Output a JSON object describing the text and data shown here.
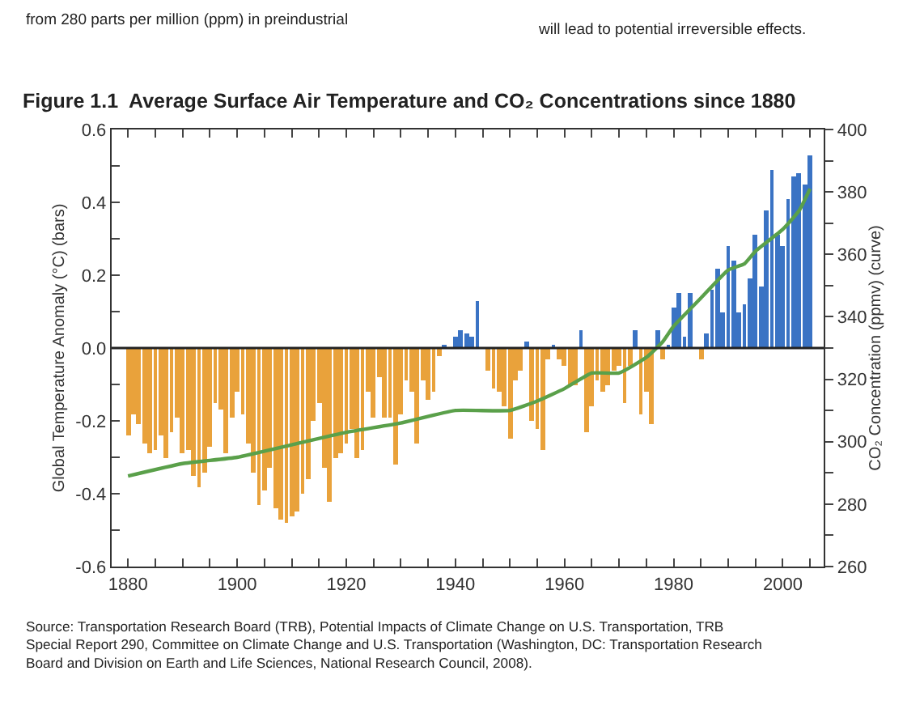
{
  "chart_data": {
    "type": "bar",
    "title": "Figure 1.1  Average Surface Air Temperature and CO₂ Concentrations since 1880",
    "ylabel": "Global Temperature Anomaly (°C) (bars)",
    "y2label": "CO₂ Concentration (ppmv) (curve)",
    "annotations": [
      "from 280 parts per million (ppm) in preindustrial",
      "will lead to potential irreversible effects.",
      "Source: Transportation Research Board (TRB), Potential Impacts of Climate Change on U.S. Transportation, TRB Special Report 290, Committee on Climate Change and U.S. Transportation (Washington, DC: Transportation Research Board and Division on Earth and Life Sciences, National Research Council, 2008)."
    ],
    "x": [
      1880,
      1881,
      1882,
      1883,
      1884,
      1885,
      1886,
      1887,
      1888,
      1889,
      1890,
      1891,
      1892,
      1893,
      1894,
      1895,
      1896,
      1897,
      1898,
      1899,
      1900,
      1901,
      1902,
      1903,
      1904,
      1905,
      1906,
      1907,
      1908,
      1909,
      1910,
      1911,
      1912,
      1913,
      1914,
      1915,
      1916,
      1917,
      1918,
      1919,
      1920,
      1921,
      1922,
      1923,
      1924,
      1925,
      1926,
      1927,
      1928,
      1929,
      1930,
      1931,
      1932,
      1933,
      1934,
      1935,
      1936,
      1937,
      1938,
      1939,
      1940,
      1941,
      1942,
      1943,
      1944,
      1945,
      1946,
      1947,
      1948,
      1949,
      1950,
      1951,
      1952,
      1953,
      1954,
      1955,
      1956,
      1957,
      1958,
      1959,
      1960,
      1961,
      1962,
      1963,
      1964,
      1965,
      1966,
      1967,
      1968,
      1969,
      1970,
      1971,
      1972,
      1973,
      1974,
      1975,
      1976,
      1977,
      1978,
      1979,
      1980,
      1981,
      1982,
      1983,
      1984,
      1985,
      1986,
      1987,
      1988,
      1989,
      1990,
      1991,
      1992,
      1993,
      1994,
      1995,
      1996,
      1997,
      1998,
      1999,
      2000,
      2001,
      2002,
      2003,
      2004,
      2005
    ],
    "series": [
      {
        "values": [
          -0.24,
          -0.18,
          -0.21,
          -0.26,
          -0.29,
          -0.28,
          -0.24,
          -0.3,
          -0.23,
          -0.19,
          -0.29,
          -0.28,
          -0.35,
          -0.38,
          -0.34,
          -0.27,
          -0.15,
          -0.17,
          -0.29,
          -0.19,
          -0.12,
          -0.18,
          -0.26,
          -0.34,
          -0.43,
          -0.39,
          -0.33,
          -0.44,
          -0.47,
          -0.48,
          -0.46,
          -0.45,
          -0.4,
          -0.36,
          -0.2,
          -0.15,
          -0.33,
          -0.42,
          -0.3,
          -0.29,
          -0.26,
          -0.22,
          -0.3,
          -0.28,
          -0.12,
          -0.19,
          -0.08,
          -0.19,
          -0.19,
          -0.32,
          -0.18,
          -0.09,
          -0.12,
          -0.26,
          -0.09,
          -0.14,
          -0.12,
          -0.02,
          0.01,
          null,
          0.03,
          0.05,
          0.04,
          0.03,
          0.13,
          null,
          -0.06,
          -0.11,
          -0.12,
          -0.16,
          -0.25,
          -0.09,
          -0.06,
          0.02,
          -0.2,
          -0.22,
          -0.28,
          -0.03,
          0.01,
          -0.03,
          -0.05,
          -0.1,
          -0.1,
          0.05,
          -0.23,
          -0.16,
          -0.09,
          -0.12,
          -0.1,
          -0.06,
          -0.05,
          -0.15,
          -0.05,
          0.05,
          -0.18,
          -0.12,
          -0.21,
          0.05,
          -0.03,
          0.01,
          0.11,
          0.15,
          0.03,
          0.15,
          null,
          -0.03,
          0.04,
          0.16,
          0.22,
          0.1,
          0.28,
          0.24,
          0.1,
          0.12,
          0.19,
          0.31,
          0.17,
          0.38,
          0.49,
          0.31,
          0.28,
          0.41,
          0.47,
          0.48,
          0.45,
          0.53
        ],
        "colors": [
          "#e9a23b",
          "#e9a23b",
          "#e9a23b",
          "#e9a23b",
          "#e9a23b",
          "#e9a23b",
          "#e9a23b",
          "#e9a23b",
          "#e9a23b",
          "#e9a23b",
          "#e9a23b",
          "#e9a23b",
          "#e9a23b",
          "#e9a23b",
          "#e9a23b",
          "#e9a23b",
          "#e9a23b",
          "#e9a23b",
          "#e9a23b",
          "#e9a23b",
          "#e9a23b",
          "#e9a23b",
          "#e9a23b",
          "#e9a23b",
          "#e9a23b",
          "#e9a23b",
          "#e9a23b",
          "#e9a23b",
          "#e9a23b",
          "#e9a23b",
          "#e9a23b",
          "#e9a23b",
          "#e9a23b",
          "#e9a23b",
          "#e9a23b",
          "#e9a23b",
          "#e9a23b",
          "#e9a23b",
          "#e9a23b",
          "#e9a23b",
          "#e9a23b",
          "#e9a23b",
          "#e9a23b",
          "#e9a23b",
          "#e9a23b",
          "#e9a23b",
          "#e9a23b",
          "#e9a23b",
          "#e9a23b",
          "#e9a23b",
          "#e9a23b",
          "#e9a23b",
          "#e9a23b",
          "#e9a23b",
          "#e9a23b",
          "#e9a23b",
          "#e9a23b",
          "#e9a23b",
          "#3a73c4",
          "#e9a23b",
          "#3a73c4",
          "#3a73c4",
          "#3a73c4",
          "#3a73c4",
          "#3a73c4",
          "#e9a23b",
          "#e9a23b",
          "#e9a23b",
          "#e9a23b",
          "#e9a23b",
          "#e9a23b",
          "#e9a23b",
          "#e9a23b",
          "#3a73c4",
          "#e9a23b",
          "#e9a23b",
          "#e9a23b",
          "#e9a23b",
          "#3a73c4",
          "#e9a23b",
          "#e9a23b",
          "#e9a23b",
          "#e9a23b",
          "#3a73c4",
          "#e9a23b",
          "#e9a23b",
          "#e9a23b",
          "#e9a23b",
          "#e9a23b",
          "#e9a23b",
          "#e9a23b",
          "#e9a23b",
          "#e9a23b",
          "#3a73c4",
          "#e9a23b",
          "#e9a23b",
          "#e9a23b",
          "#3a73c4",
          "#e9a23b",
          "#3a73c4",
          "#3a73c4",
          "#3a73c4",
          "#3a73c4",
          "#3a73c4",
          "#e9a23b",
          "#e9a23b",
          "#3a73c4",
          "#3a73c4",
          "#3a73c4",
          "#3a73c4",
          "#3a73c4",
          "#3a73c4",
          "#3a73c4",
          "#3a73c4",
          "#3a73c4",
          "#3a73c4",
          "#3a73c4",
          "#3a73c4",
          "#3a73c4",
          "#3a73c4",
          "#3a73c4",
          "#3a73c4",
          "#3a73c4",
          "#3a73c4",
          "#3a73c4",
          "#3a73c4"
        ]
      },
      {
        "type": "line",
        "axis": "y2",
        "color": "#5aa04a",
        "x": [
          1880,
          1890,
          1900,
          1910,
          1920,
          1930,
          1940,
          1950,
          1955,
          1960,
          1965,
          1970,
          1975,
          1978,
          1980,
          1985,
          1990,
          1993,
          1995,
          2000,
          2003,
          2005
        ],
        "values": [
          289,
          293,
          295,
          299,
          303,
          306,
          310,
          310,
          313,
          317,
          322,
          322,
          327,
          332,
          337,
          346,
          355,
          357,
          361,
          368,
          374,
          381
        ]
      }
    ],
    "xlim": [
      1877,
      2007.5
    ],
    "xticks": [
      1880,
      {
        "value": 1885,
        "label": null
      },
      {
        "value": 1890,
        "label": null
      },
      {
        "value": 1895,
        "label": null
      },
      1900,
      {
        "value": 1905,
        "label": null
      },
      {
        "value": 1910,
        "label": null
      },
      {
        "value": 1915,
        "label": null
      },
      1920,
      {
        "value": 1925,
        "label": null
      },
      {
        "value": 1930,
        "label": null
      },
      {
        "value": 1935,
        "label": null
      },
      1940,
      {
        "value": 1945,
        "label": null
      },
      {
        "value": 1950,
        "label": null
      },
      {
        "value": 1955,
        "label": null
      },
      1960,
      {
        "value": 1965,
        "label": null
      },
      {
        "value": 1970,
        "label": null
      },
      {
        "value": 1975,
        "label": null
      },
      1980,
      {
        "value": 1985,
        "label": null
      },
      {
        "value": 1990,
        "label": null
      },
      {
        "value": 1995,
        "label": null
      },
      2000,
      {
        "value": 2005,
        "label": null
      }
    ],
    "ylim": [
      -0.6,
      0.6
    ],
    "yticks": [
      -0.6,
      {
        "value": -0.5,
        "label": null
      },
      -0.4,
      {
        "value": -0.3,
        "label": null
      },
      -0.2,
      {
        "value": -0.1,
        "label": null
      },
      {
        "value": 0,
        "label": "0.0"
      },
      {
        "value": 0.1,
        "label": null
      },
      0.2,
      {
        "value": 0.3,
        "label": null
      },
      0.4,
      {
        "value": 0.5,
        "label": null
      },
      0.6
    ],
    "y2lim": [
      260,
      400
    ],
    "y2ticks": [
      260,
      {
        "value": 270,
        "label": null
      },
      280,
      {
        "value": 290,
        "label": null
      },
      300,
      {
        "value": 310,
        "label": null
      },
      320,
      {
        "value": 330,
        "label": null
      },
      340,
      {
        "value": 350,
        "label": null
      },
      360,
      {
        "value": 370,
        "label": null
      },
      380,
      {
        "value": 390,
        "label": null
      },
      400
    ],
    "ref_lines": [
      {
        "axis": "y",
        "value": 0,
        "color": "#222222"
      }
    ]
  }
}
